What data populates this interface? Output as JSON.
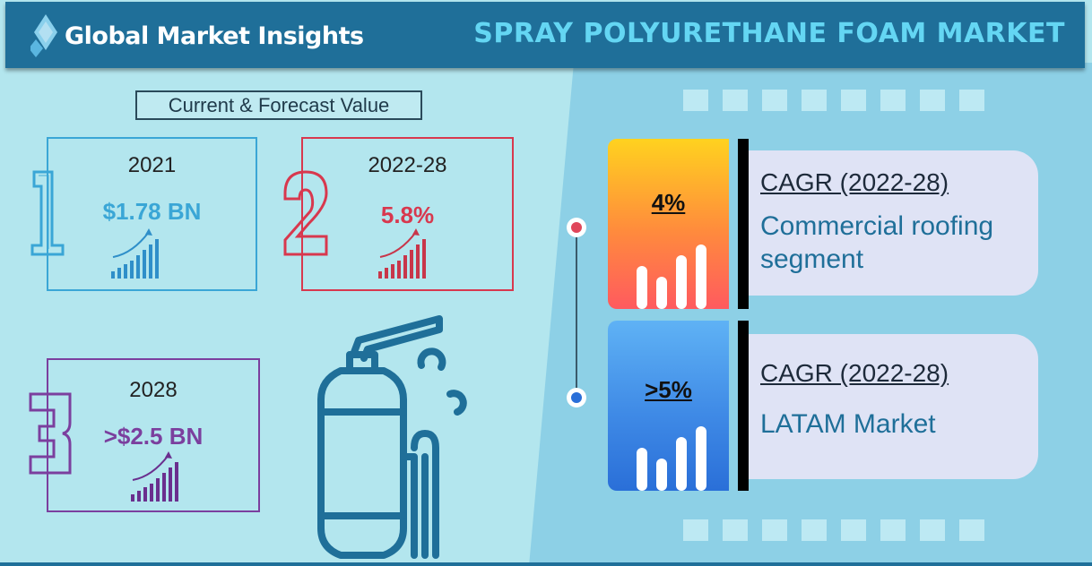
{
  "header": {
    "logo_text": "Global Market Insights",
    "title": "SPRAY POLYURETHANE FOAM MARKET"
  },
  "subtitle": "Current & Forecast Value",
  "cards": [
    {
      "digit": "1",
      "year": "2021",
      "value": "$1.78 BN",
      "color": "#3aa6d6",
      "icon": "growth-chart-icon"
    },
    {
      "digit": "2",
      "year": "2022-28",
      "value": "5.8%",
      "color": "#d8384e",
      "icon": "growth-chart-icon"
    },
    {
      "digit": "3",
      "year": "2028",
      "value": ">$2.5 BN",
      "color": "#7b3f9e",
      "icon": "growth-chart-icon"
    }
  ],
  "stats": [
    {
      "value": "4%",
      "cagr_label": "CAGR (2022-28)",
      "segment": "Commercial roofing segment",
      "gradient": [
        "#ffd21f",
        "#ff5a5f"
      ],
      "dot_color": "#e0465a"
    },
    {
      "value": ">5%",
      "cagr_label": "CAGR (2022-28)",
      "segment": "LATAM Market",
      "gradient": [
        "#5fb2f5",
        "#2a6fd8"
      ],
      "dot_color": "#2a6fd8"
    }
  ],
  "colors": {
    "header_bg": "#1f6f99",
    "title_color": "#64d6f3",
    "left_bg": "#b3e6ee",
    "right_bg": "#8dd0e6",
    "panel_bg": "#dfe3f5"
  },
  "icons": [
    "diamond-logo-icon",
    "spray-foam-canister-icon",
    "timeline-dot-icon",
    "bar-chart-icon"
  ]
}
